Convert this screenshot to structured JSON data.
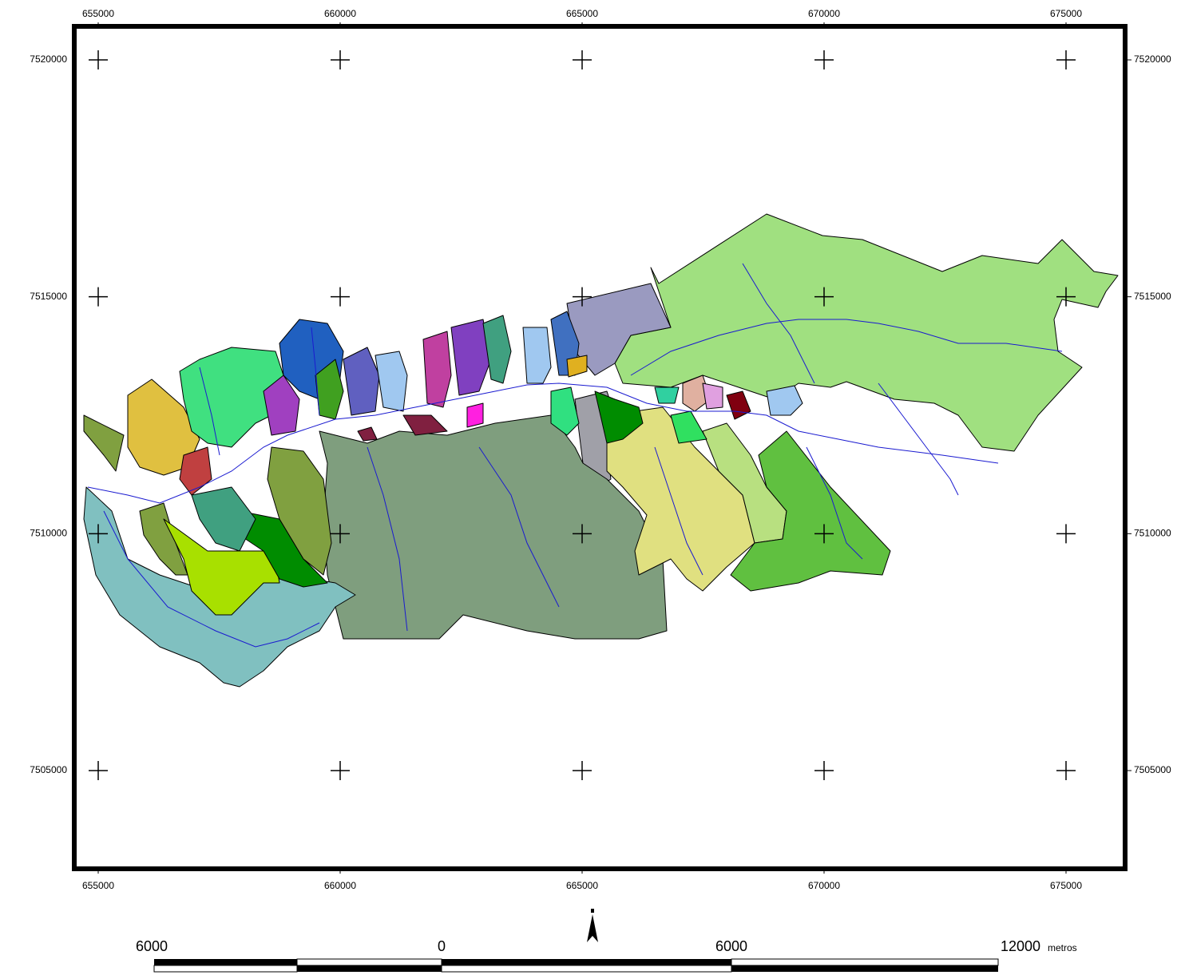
{
  "map": {
    "x_ticks": [
      655000,
      660000,
      665000,
      670000,
      675000
    ],
    "y_ticks": [
      7520000,
      7515000,
      7510000,
      7505000
    ]
  },
  "scale_bar": {
    "labels": [
      6000,
      0,
      6000,
      12000
    ],
    "unit": "metros"
  }
}
